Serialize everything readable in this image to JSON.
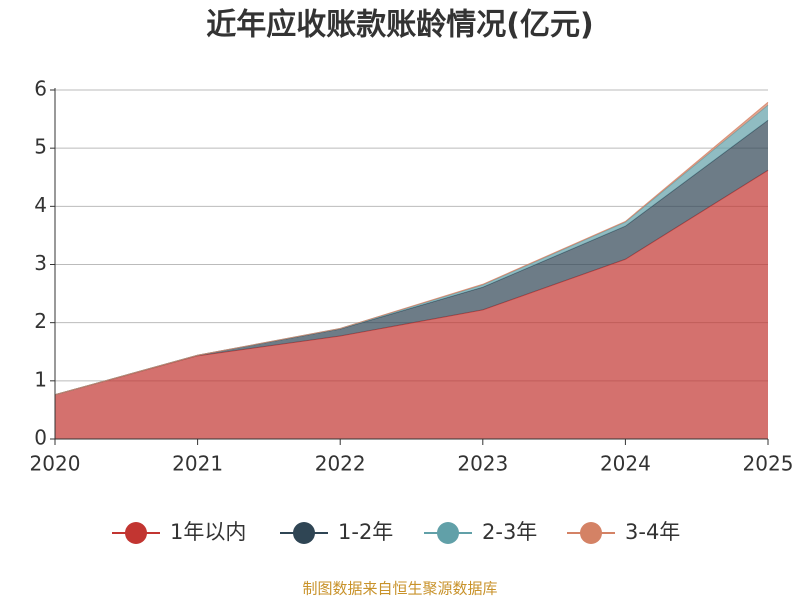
{
  "chart_data": {
    "type": "stacked_area",
    "title": "近年应收账款账龄情况(亿元)",
    "categories": [
      "2020",
      "2021",
      "2022",
      "2023",
      "2024",
      "2025"
    ],
    "series": [
      {
        "name": "1年以内",
        "color": "#c23531",
        "values": [
          0.76,
          1.43,
          1.77,
          2.22,
          3.09,
          4.62
        ]
      },
      {
        "name": "1-2年",
        "color": "#2f4554",
        "values": [
          0,
          0.01,
          0.12,
          0.39,
          0.57,
          0.86
        ]
      },
      {
        "name": "2-3年",
        "color": "#61a0a8",
        "values": [
          0,
          0,
          0.01,
          0.04,
          0.07,
          0.26
        ]
      },
      {
        "name": "3-4年",
        "color": "#d48265",
        "values": [
          0,
          0,
          0,
          0.01,
          0.01,
          0.05
        ]
      }
    ],
    "ylim": [
      0,
      6
    ],
    "yticks": [
      0,
      1,
      2,
      3,
      4,
      5,
      6
    ],
    "grid": true,
    "source": "制图数据来自恒生聚源数据库"
  }
}
